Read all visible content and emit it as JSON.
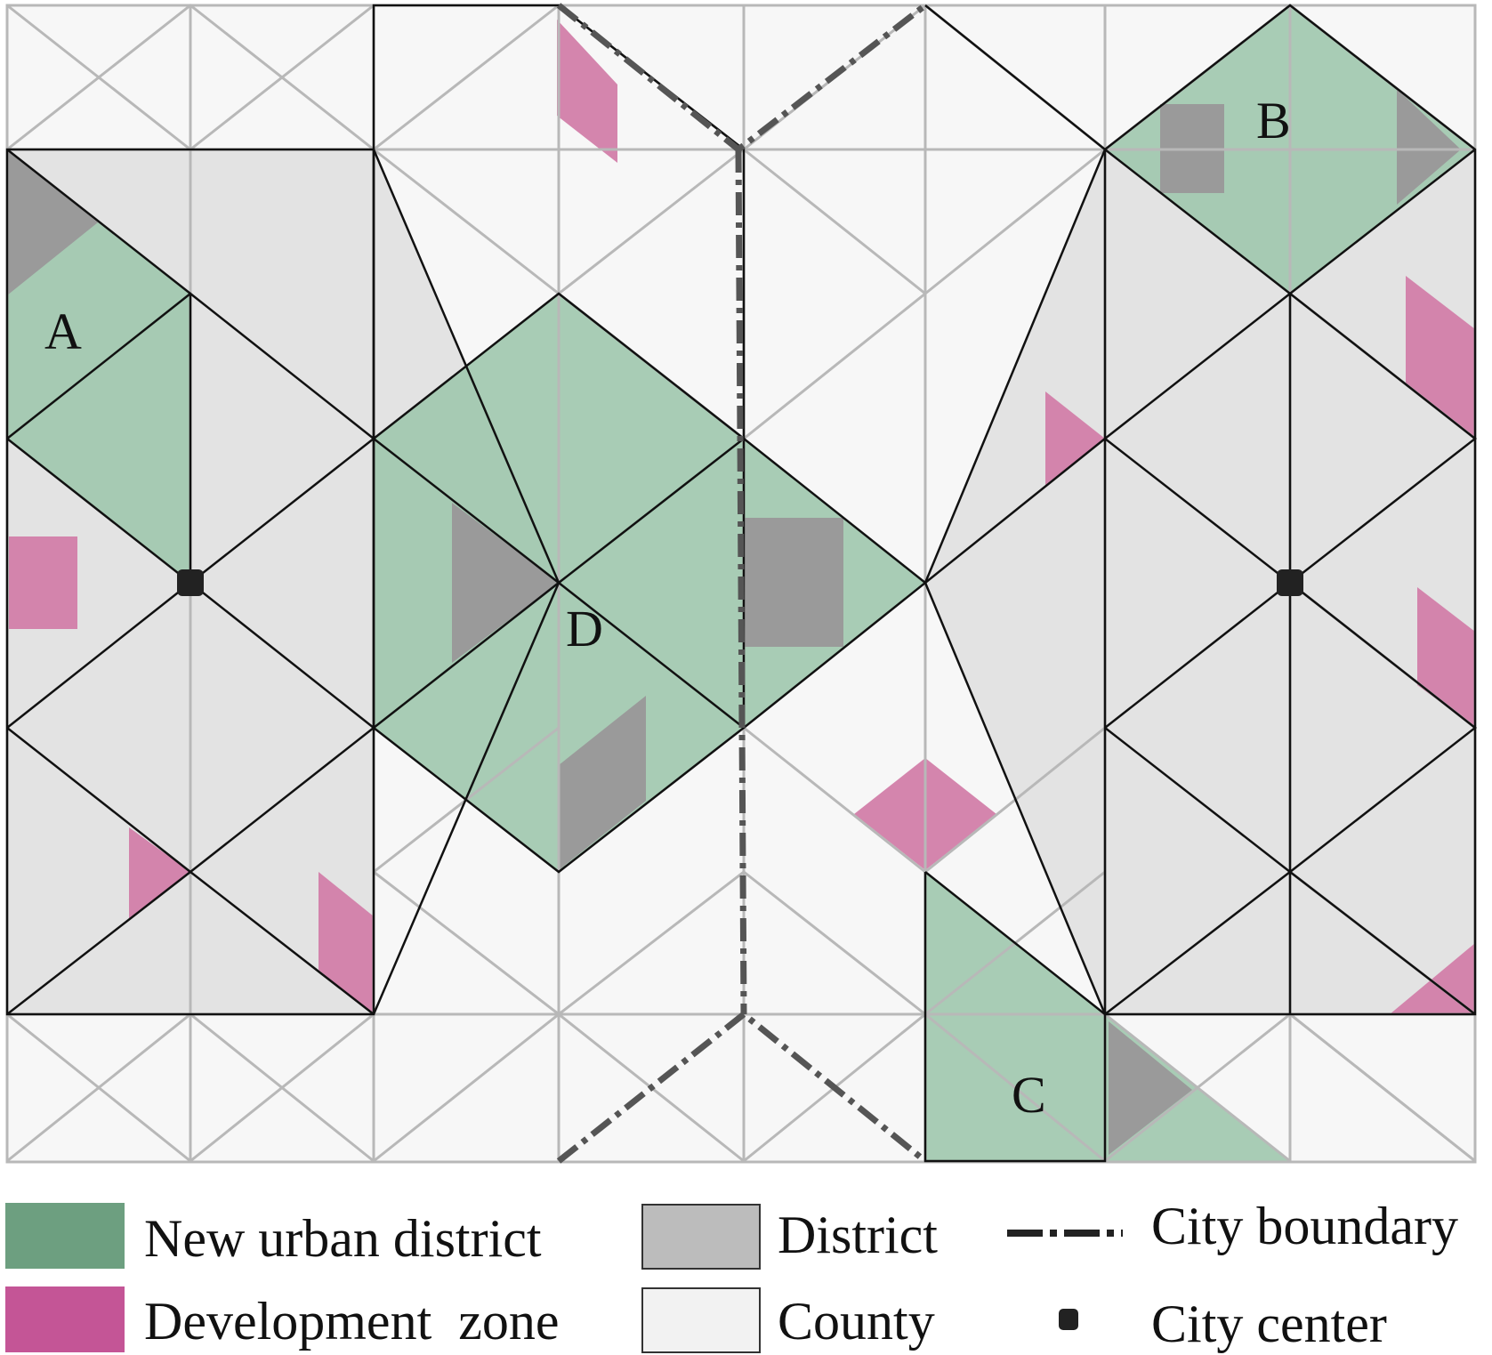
{
  "colors": {
    "new_urban_district": "#9fc6ad",
    "development_zone": "#d27ea9",
    "district": "#e3e3e3",
    "district_core": "#9a9a9a",
    "county": "#f7f7f7",
    "grid_line": "#b8b8b8",
    "boundary_line": "#111111",
    "city_boundary": "#555555",
    "city_center": "#222222",
    "legend_new_urban": "#6d9f80",
    "legend_development": "#c45596",
    "legend_district": "#bcbcbc",
    "legend_county": "#f2f2f2"
  },
  "regions": {
    "a": "A",
    "b": "B",
    "c": "C",
    "d": "D"
  },
  "legend": {
    "new_urban_district": "New urban district",
    "development_zone": "Development  zone",
    "district": "District",
    "county": "County",
    "city_boundary": "City boundary",
    "city_center": "City center"
  }
}
